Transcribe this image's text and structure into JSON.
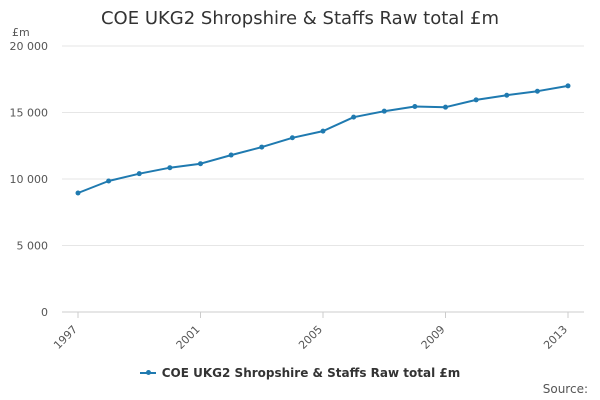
{
  "chart_data": {
    "type": "line",
    "title": "COE UKG2 Shropshire & Staffs Raw total £m",
    "ylabel": "£m",
    "xlabel": "",
    "x": [
      1997,
      1998,
      1999,
      2000,
      2001,
      2002,
      2003,
      2004,
      2005,
      2006,
      2007,
      2008,
      2009,
      2010,
      2011,
      2012,
      2013
    ],
    "series": [
      {
        "name": "COE UKG2 Shropshire & Staffs Raw total £m",
        "values": [
          8950,
          9850,
          10400,
          10850,
          11150,
          11800,
          12400,
          13100,
          13600,
          14650,
          15100,
          15450,
          15400,
          15950,
          16300,
          16600,
          17000
        ],
        "color": "#1f7ab0"
      }
    ],
    "x_ticks": [
      "1997",
      "2001",
      "2005",
      "2009",
      "2013"
    ],
    "y_ticks": [
      "0",
      "5 000",
      "10 000",
      "15 000",
      "20 000"
    ],
    "ylim": [
      0,
      20000
    ],
    "xlim": [
      1997,
      2013
    ],
    "grid": "horizontal",
    "legend_position": "bottom",
    "source": "Source:"
  }
}
